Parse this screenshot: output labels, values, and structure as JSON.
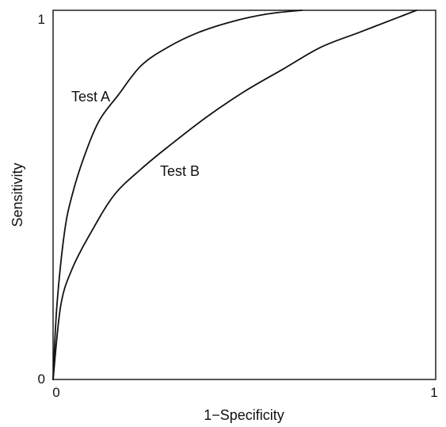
{
  "chart_data": {
    "type": "line",
    "title": "",
    "xlabel": "1−Specificity",
    "ylabel": "Sensitivity",
    "xlim": [
      0,
      1
    ],
    "ylim": [
      0,
      1
    ],
    "x_ticks": [
      "0",
      "1"
    ],
    "y_ticks": [
      "0",
      "1"
    ],
    "grid": false,
    "legend": "none",
    "series": [
      {
        "name": "Test A",
        "x": [
          0,
          0.01,
          0.03,
          0.05,
          0.08,
          0.12,
          0.17,
          0.23,
          0.3,
          0.38,
          0.47,
          0.56,
          0.65
        ],
        "y": [
          0,
          0.2,
          0.4,
          0.5,
          0.6,
          0.7,
          0.77,
          0.85,
          0.9,
          0.94,
          0.97,
          0.99,
          1.0
        ]
      },
      {
        "name": "Test B",
        "x": [
          0,
          0.02,
          0.05,
          0.1,
          0.16,
          0.23,
          0.3,
          0.4,
          0.5,
          0.6,
          0.7,
          0.8,
          0.9,
          0.95
        ],
        "y": [
          0,
          0.2,
          0.3,
          0.4,
          0.5,
          0.57,
          0.63,
          0.71,
          0.78,
          0.84,
          0.9,
          0.94,
          0.98,
          1.0
        ]
      }
    ],
    "colors": {
      "line": "#111111",
      "frame": "#111111",
      "background": "#ffffff"
    }
  }
}
